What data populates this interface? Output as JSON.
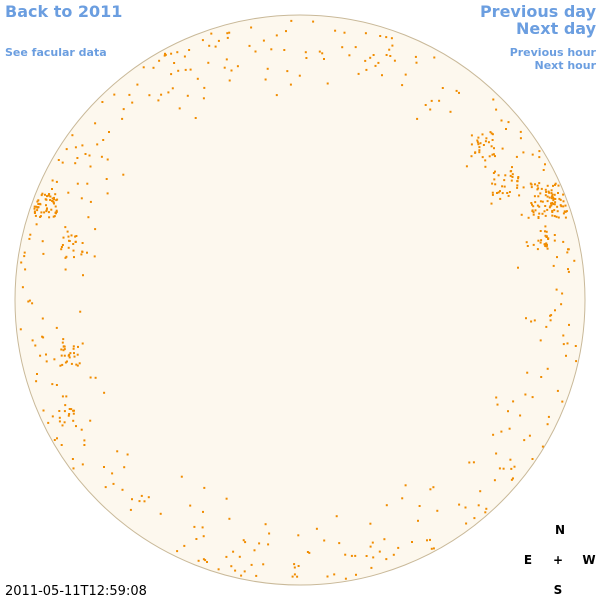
{
  "links": {
    "back": "Back to 2011",
    "facular": "See facular data",
    "previous_day": "Previous day",
    "next_day": "Next day",
    "previous_hour": "Previous hour",
    "next_hour": "Next hour"
  },
  "compass": {
    "north": "N",
    "east": "E",
    "center": "+",
    "west": "W",
    "south": "S"
  },
  "timestamp": "2011-05-11T12:59:08"
}
